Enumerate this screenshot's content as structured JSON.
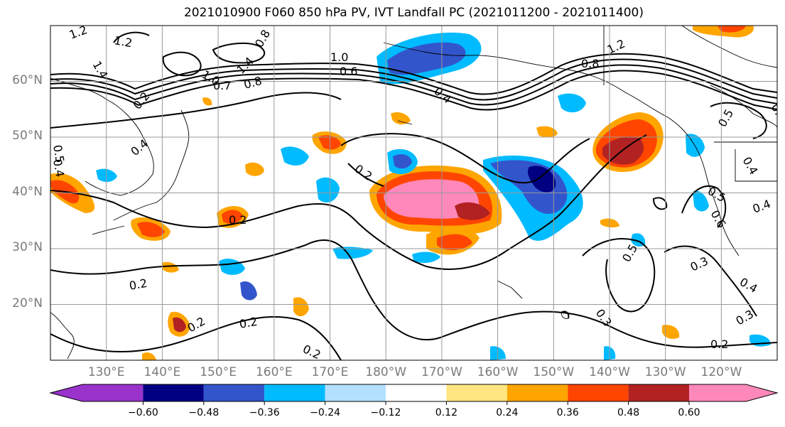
{
  "title": "2021010900 F060 850 hPa PV, IVT Landfall PC (2021011200 - 2021011400)",
  "lat_labels": [
    "60°N",
    "50°N",
    "40°N",
    "30°N",
    "20°N"
  ],
  "lon_labels": [
    "130°E",
    "140°E",
    "150°E",
    "160°E",
    "170°E",
    "180°W",
    "170°W",
    "160°W",
    "150°W",
    "140°W",
    "130°W",
    "120°W"
  ],
  "map_extent": {
    "lon_min": 120,
    "lon_max": 250,
    "lat_min": 10,
    "lat_max": 70
  },
  "contour_labels": [
    "1.2",
    "1.2",
    "1.0",
    "1.0",
    "0.8",
    "1.4",
    "1.4",
    "0.8",
    "0.6",
    "0.7",
    "0.8",
    "1.2",
    "0.4",
    "0.4",
    "0.2",
    "0.2",
    "0.2",
    "0.2",
    "0.2",
    "0.2",
    "0.2",
    "0.3",
    "0.5",
    "0.3",
    "0.4",
    "0.3",
    "0.2",
    "0.5",
    "0.4",
    "0.5",
    "0.6",
    "0.4",
    "0.5",
    "0.4",
    "0.5"
  ],
  "colorbar": {
    "ticks": [
      "−0.60",
      "−0.48",
      "−0.36",
      "−0.24",
      "−0.12",
      "0.12",
      "0.24",
      "0.36",
      "0.48",
      "0.60"
    ],
    "colors": [
      "#9933cc",
      "#000080",
      "#3355cc",
      "#00bbff",
      "#b3e0ff",
      "#ffffff",
      "#ffe680",
      "#ffa500",
      "#ff4500",
      "#b22222",
      "#ff88bb"
    ]
  }
}
